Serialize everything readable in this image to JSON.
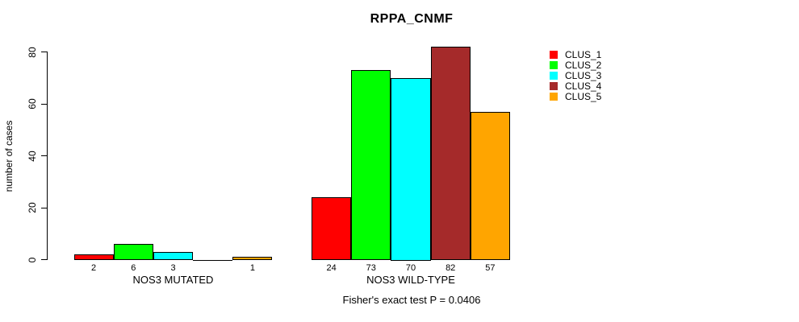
{
  "chart_data": {
    "type": "bar",
    "title": "RPPA_CNMF",
    "ylabel": "number of cases",
    "ylim": [
      0,
      80
    ],
    "yticks": [
      0,
      20,
      40,
      60,
      80
    ],
    "groups": [
      "NOS3 MUTATED",
      "NOS3 WILD-TYPE"
    ],
    "series": [
      {
        "name": "CLUS_1",
        "color": "#ff0000",
        "values": [
          2,
          24
        ]
      },
      {
        "name": "CLUS_2",
        "color": "#00ff00",
        "values": [
          6,
          73
        ]
      },
      {
        "name": "CLUS_3",
        "color": "#00ffff",
        "values": [
          3,
          70
        ]
      },
      {
        "name": "CLUS_4",
        "color": "#a52a2a",
        "values": [
          0,
          82
        ]
      },
      {
        "name": "CLUS_5",
        "color": "#ffa500",
        "values": [
          1,
          57
        ]
      }
    ],
    "bar_labels": [
      [
        "2",
        "6",
        "3",
        "",
        "1"
      ],
      [
        "24",
        "73",
        "70",
        "82",
        "57"
      ]
    ],
    "legend_position": "right",
    "grid": false,
    "annotation": "Fisher's exact test P = 0.0406"
  }
}
